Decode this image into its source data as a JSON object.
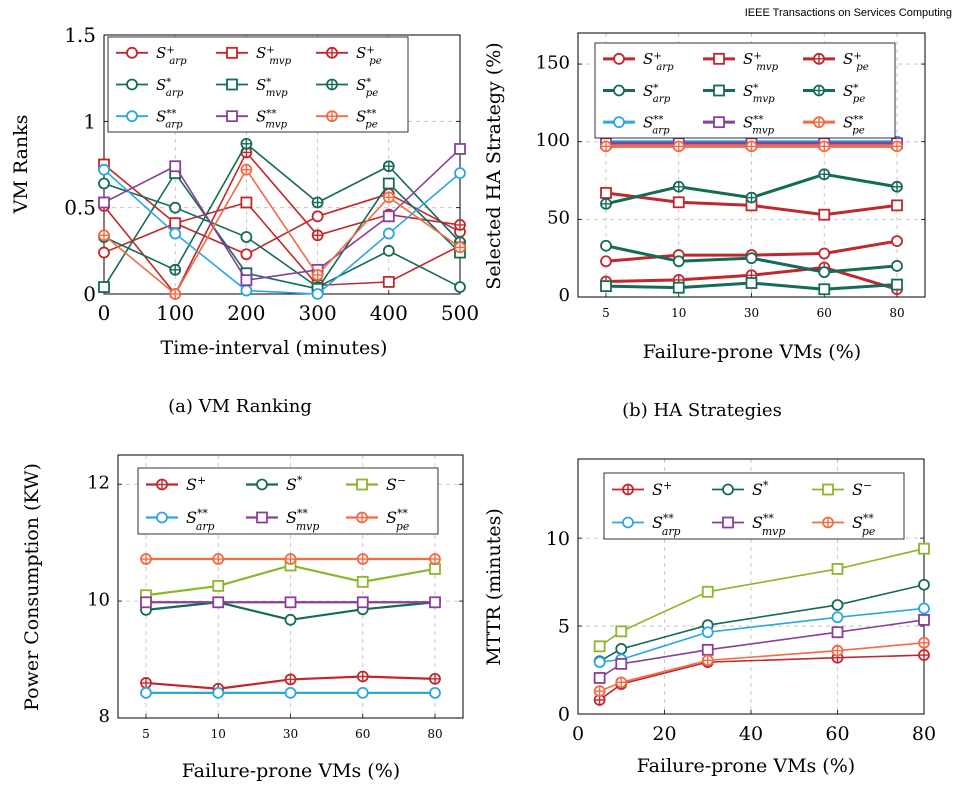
{
  "header": {
    "journal": "IEEE Transactions on Services Computing"
  },
  "chart_data": [
    {
      "id": "a",
      "type": "line",
      "caption": "(a) VM Ranking",
      "xlabel": "Time-interval (minutes)",
      "ylabel": "VM Ranks",
      "x": [
        0,
        100,
        200,
        300,
        400,
        500
      ],
      "xticks": [
        0,
        100,
        200,
        300,
        400,
        500
      ],
      "yticks": [
        0,
        0.5,
        1,
        1.5
      ],
      "ytick_labels": [
        "0",
        "0.5",
        "1",
        "1.5"
      ],
      "xlim": [
        0,
        500
      ],
      "ylim": [
        0,
        1.5
      ],
      "grid": true,
      "legend_position": "top",
      "legend_cols": 3,
      "series": [
        {
          "name": "S+arp",
          "base": "S",
          "sup": "+",
          "sub": "arp",
          "color": "#c0282d",
          "marker": "circle",
          "values": [
            0.24,
            0.41,
            0.23,
            0.45,
            0.58,
            0.36
          ]
        },
        {
          "name": "S+mvp",
          "base": "S",
          "sup": "+",
          "sub": "mvp",
          "color": "#c0282d",
          "marker": "square",
          "values": [
            0.75,
            0.41,
            0.53,
            0.05,
            0.07,
            0.28
          ]
        },
        {
          "name": "S+pe",
          "base": "S",
          "sup": "+",
          "sub": "pe",
          "color": "#c0282d",
          "marker": "circle-plus",
          "values": [
            0.51,
            0.0,
            0.82,
            0.34,
            0.46,
            0.4
          ]
        },
        {
          "name": "S*arp",
          "base": "S",
          "sup": "*",
          "sub": "arp",
          "color": "#146b57",
          "marker": "circle",
          "values": [
            0.64,
            0.5,
            0.33,
            0.04,
            0.25,
            0.04
          ]
        },
        {
          "name": "S*mvp",
          "base": "S",
          "sup": "*",
          "sub": "mvp",
          "color": "#146b57",
          "marker": "square",
          "values": [
            0.04,
            0.7,
            0.12,
            0.03,
            0.64,
            0.24
          ]
        },
        {
          "name": "S*pe",
          "base": "S",
          "sup": "*",
          "sub": "pe",
          "color": "#146b57",
          "marker": "circle-plus",
          "values": [
            0.33,
            0.14,
            0.87,
            0.53,
            0.74,
            0.3
          ]
        },
        {
          "name": "S**arp",
          "base": "S",
          "sup": "**",
          "sub": "arp",
          "color": "#2aa7df",
          "marker": "circle",
          "values": [
            0.72,
            0.35,
            0.02,
            0.0,
            0.35,
            0.7
          ]
        },
        {
          "name": "S**mvp",
          "base": "S",
          "sup": "**",
          "sub": "mvp",
          "color": "#8a3f98",
          "marker": "square",
          "values": [
            0.53,
            0.74,
            0.08,
            0.14,
            0.45,
            0.84
          ]
        },
        {
          "name": "S**pe",
          "base": "S",
          "sup": "**",
          "sub": "pe",
          "color": "#f26b43",
          "marker": "circle-plus",
          "values": [
            0.34,
            0.0,
            0.72,
            0.11,
            0.56,
            0.27
          ]
        }
      ]
    },
    {
      "id": "b",
      "type": "line",
      "caption": "(b) HA Strategies",
      "xlabel": "Failure-prone VMs (%)",
      "ylabel": "Selected HA Strategy (%)",
      "categories": [
        "5",
        "10",
        "30",
        "60",
        "80"
      ],
      "yticks": [
        0,
        50,
        100,
        150
      ],
      "ylim": [
        0,
        170
      ],
      "grid": true,
      "legend_position": "top",
      "legend_cols": 3,
      "series": [
        {
          "name": "S+arp",
          "base": "S",
          "sup": "+",
          "sub": "arp",
          "color": "#c0282d",
          "marker": "circle",
          "values": [
            23,
            27,
            27,
            28,
            36
          ]
        },
        {
          "name": "S+mvp",
          "base": "S",
          "sup": "+",
          "sub": "mvp",
          "color": "#c0282d",
          "marker": "square",
          "values": [
            67,
            61,
            59,
            53,
            59
          ]
        },
        {
          "name": "S+pe",
          "base": "S",
          "sup": "+",
          "sub": "pe",
          "color": "#c0282d",
          "marker": "circle-plus",
          "values": [
            10,
            11,
            14,
            19,
            5
          ]
        },
        {
          "name": "S*arp",
          "base": "S",
          "sup": "*",
          "sub": "arp",
          "color": "#146b57",
          "marker": "circle",
          "values": [
            33,
            23,
            25,
            16,
            20
          ]
        },
        {
          "name": "S*mvp",
          "base": "S",
          "sup": "*",
          "sub": "mvp",
          "color": "#146b57",
          "marker": "square",
          "values": [
            7,
            6,
            9,
            5,
            8
          ]
        },
        {
          "name": "S*pe",
          "base": "S",
          "sup": "*",
          "sub": "pe",
          "color": "#146b57",
          "marker": "circle-plus",
          "values": [
            60,
            71,
            64,
            79,
            71
          ]
        },
        {
          "name": "S**arp",
          "base": "S",
          "sup": "**",
          "sub": "arp",
          "color": "#2aa7df",
          "marker": "circle",
          "values": [
            100,
            100,
            100,
            100,
            100
          ]
        },
        {
          "name": "S**mvp",
          "base": "S",
          "sup": "**",
          "sub": "mvp",
          "color": "#8a3f98",
          "marker": "square",
          "values": [
            99,
            99,
            99,
            99,
            99
          ]
        },
        {
          "name": "S**pe",
          "base": "S",
          "sup": "**",
          "sub": "pe",
          "color": "#f26b43",
          "marker": "circle-plus",
          "values": [
            97,
            97,
            97,
            97,
            97
          ]
        }
      ]
    },
    {
      "id": "c",
      "type": "line",
      "caption": "",
      "xlabel": "Failure-prone VMs (%)",
      "ylabel": "Power Consumption (KW)",
      "categories": [
        "5",
        "10",
        "30",
        "60",
        "80"
      ],
      "yticks": [
        8,
        10,
        12
      ],
      "ylim": [
        8,
        12.5
      ],
      "grid": true,
      "legend_position": "top",
      "legend_cols": 3,
      "series": [
        {
          "name": "S+",
          "base": "S",
          "sup": "+",
          "sub": "",
          "color": "#c0282d",
          "marker": "circle-plus",
          "values": [
            8.6,
            8.5,
            8.66,
            8.71,
            8.67
          ]
        },
        {
          "name": "S*",
          "base": "S",
          "sup": "*",
          "sub": "",
          "color": "#146b57",
          "marker": "circle",
          "values": [
            9.85,
            9.98,
            9.68,
            9.86,
            9.98
          ]
        },
        {
          "name": "S-",
          "base": "S",
          "sup": "−",
          "sub": "",
          "color": "#8db52a",
          "marker": "square",
          "values": [
            10.1,
            10.26,
            10.61,
            10.33,
            10.55
          ]
        },
        {
          "name": "S**arp",
          "base": "S",
          "sup": "**",
          "sub": "arp",
          "color": "#2aa7df",
          "marker": "circle",
          "values": [
            8.43,
            8.43,
            8.43,
            8.43,
            8.43
          ]
        },
        {
          "name": "S**mvp",
          "base": "S",
          "sup": "**",
          "sub": "mvp",
          "color": "#8a3f98",
          "marker": "square",
          "values": [
            9.98,
            9.98,
            9.98,
            9.98,
            9.98
          ]
        },
        {
          "name": "S**pe",
          "base": "S",
          "sup": "**",
          "sub": "pe",
          "color": "#f26b43",
          "marker": "circle-plus",
          "values": [
            10.72,
            10.72,
            10.72,
            10.72,
            10.72
          ]
        }
      ]
    },
    {
      "id": "d",
      "type": "line",
      "caption": "",
      "xlabel": "Failure-prone VMs (%)",
      "ylabel": "MTTR (minutes)",
      "x": [
        5,
        10,
        30,
        60,
        80
      ],
      "xticks": [
        0,
        20,
        40,
        60,
        80
      ],
      "yticks": [
        0,
        5,
        10
      ],
      "xlim": [
        0,
        80
      ],
      "ylim": [
        0,
        14.5
      ],
      "grid": true,
      "legend_position": "top",
      "legend_cols": 3,
      "series": [
        {
          "name": "S+",
          "base": "S",
          "sup": "+",
          "sub": "",
          "color": "#c0282d",
          "marker": "circle-plus",
          "values": [
            0.8,
            1.7,
            2.95,
            3.2,
            3.35
          ]
        },
        {
          "name": "S*",
          "base": "S",
          "sup": "*",
          "sub": "",
          "color": "#146b57",
          "marker": "circle",
          "values": [
            3.0,
            3.7,
            5.05,
            6.2,
            7.35
          ]
        },
        {
          "name": "S-",
          "base": "S",
          "sup": "−",
          "sub": "",
          "color": "#8db52a",
          "marker": "square",
          "values": [
            3.85,
            4.7,
            6.95,
            8.25,
            9.4
          ]
        },
        {
          "name": "S**arp",
          "base": "S",
          "sup": "**",
          "sub": "arp",
          "color": "#2aa7df",
          "marker": "circle",
          "values": [
            2.95,
            3.1,
            4.65,
            5.5,
            6.0
          ]
        },
        {
          "name": "S**mvp",
          "base": "S",
          "sup": "**",
          "sub": "mvp",
          "color": "#8a3f98",
          "marker": "square",
          "values": [
            2.05,
            2.85,
            3.65,
            4.65,
            5.35
          ]
        },
        {
          "name": "S**pe",
          "base": "S",
          "sup": "**",
          "sub": "pe",
          "color": "#f26b43",
          "marker": "circle-plus",
          "values": [
            1.3,
            1.8,
            3.05,
            3.6,
            4.05
          ]
        }
      ]
    }
  ]
}
